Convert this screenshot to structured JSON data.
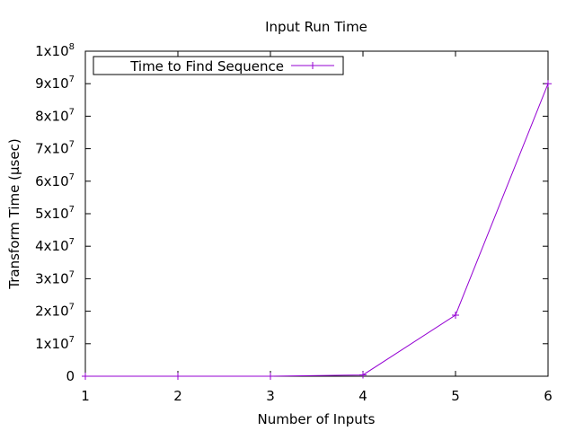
{
  "chart_data": {
    "type": "line",
    "title": "Input Run Time",
    "xlabel": "Number of Inputs",
    "ylabel": "Transform Time (µsec)",
    "xlim": [
      1,
      6
    ],
    "ylim": [
      0,
      100000000
    ],
    "x_ticks": [
      1,
      2,
      3,
      4,
      5,
      6
    ],
    "y_ticks": [
      {
        "value": 0,
        "mant": "0",
        "exp": ""
      },
      {
        "value": 10000000,
        "mant": "1x10",
        "exp": "7"
      },
      {
        "value": 20000000,
        "mant": "2x10",
        "exp": "7"
      },
      {
        "value": 30000000,
        "mant": "3x10",
        "exp": "7"
      },
      {
        "value": 40000000,
        "mant": "4x10",
        "exp": "7"
      },
      {
        "value": 50000000,
        "mant": "5x10",
        "exp": "7"
      },
      {
        "value": 60000000,
        "mant": "6x10",
        "exp": "7"
      },
      {
        "value": 70000000,
        "mant": "7x10",
        "exp": "7"
      },
      {
        "value": 80000000,
        "mant": "8x10",
        "exp": "7"
      },
      {
        "value": 90000000,
        "mant": "9x10",
        "exp": "7"
      },
      {
        "value": 100000000,
        "mant": "1x10",
        "exp": "8"
      }
    ],
    "grid": false,
    "legend_position": "top-left",
    "series": [
      {
        "name": "Time to Find Sequence",
        "color": "#9400d3",
        "x": [
          1,
          2,
          3,
          4,
          5,
          6
        ],
        "y": [
          0,
          0,
          0,
          400000,
          18800000,
          90000000
        ]
      }
    ]
  }
}
